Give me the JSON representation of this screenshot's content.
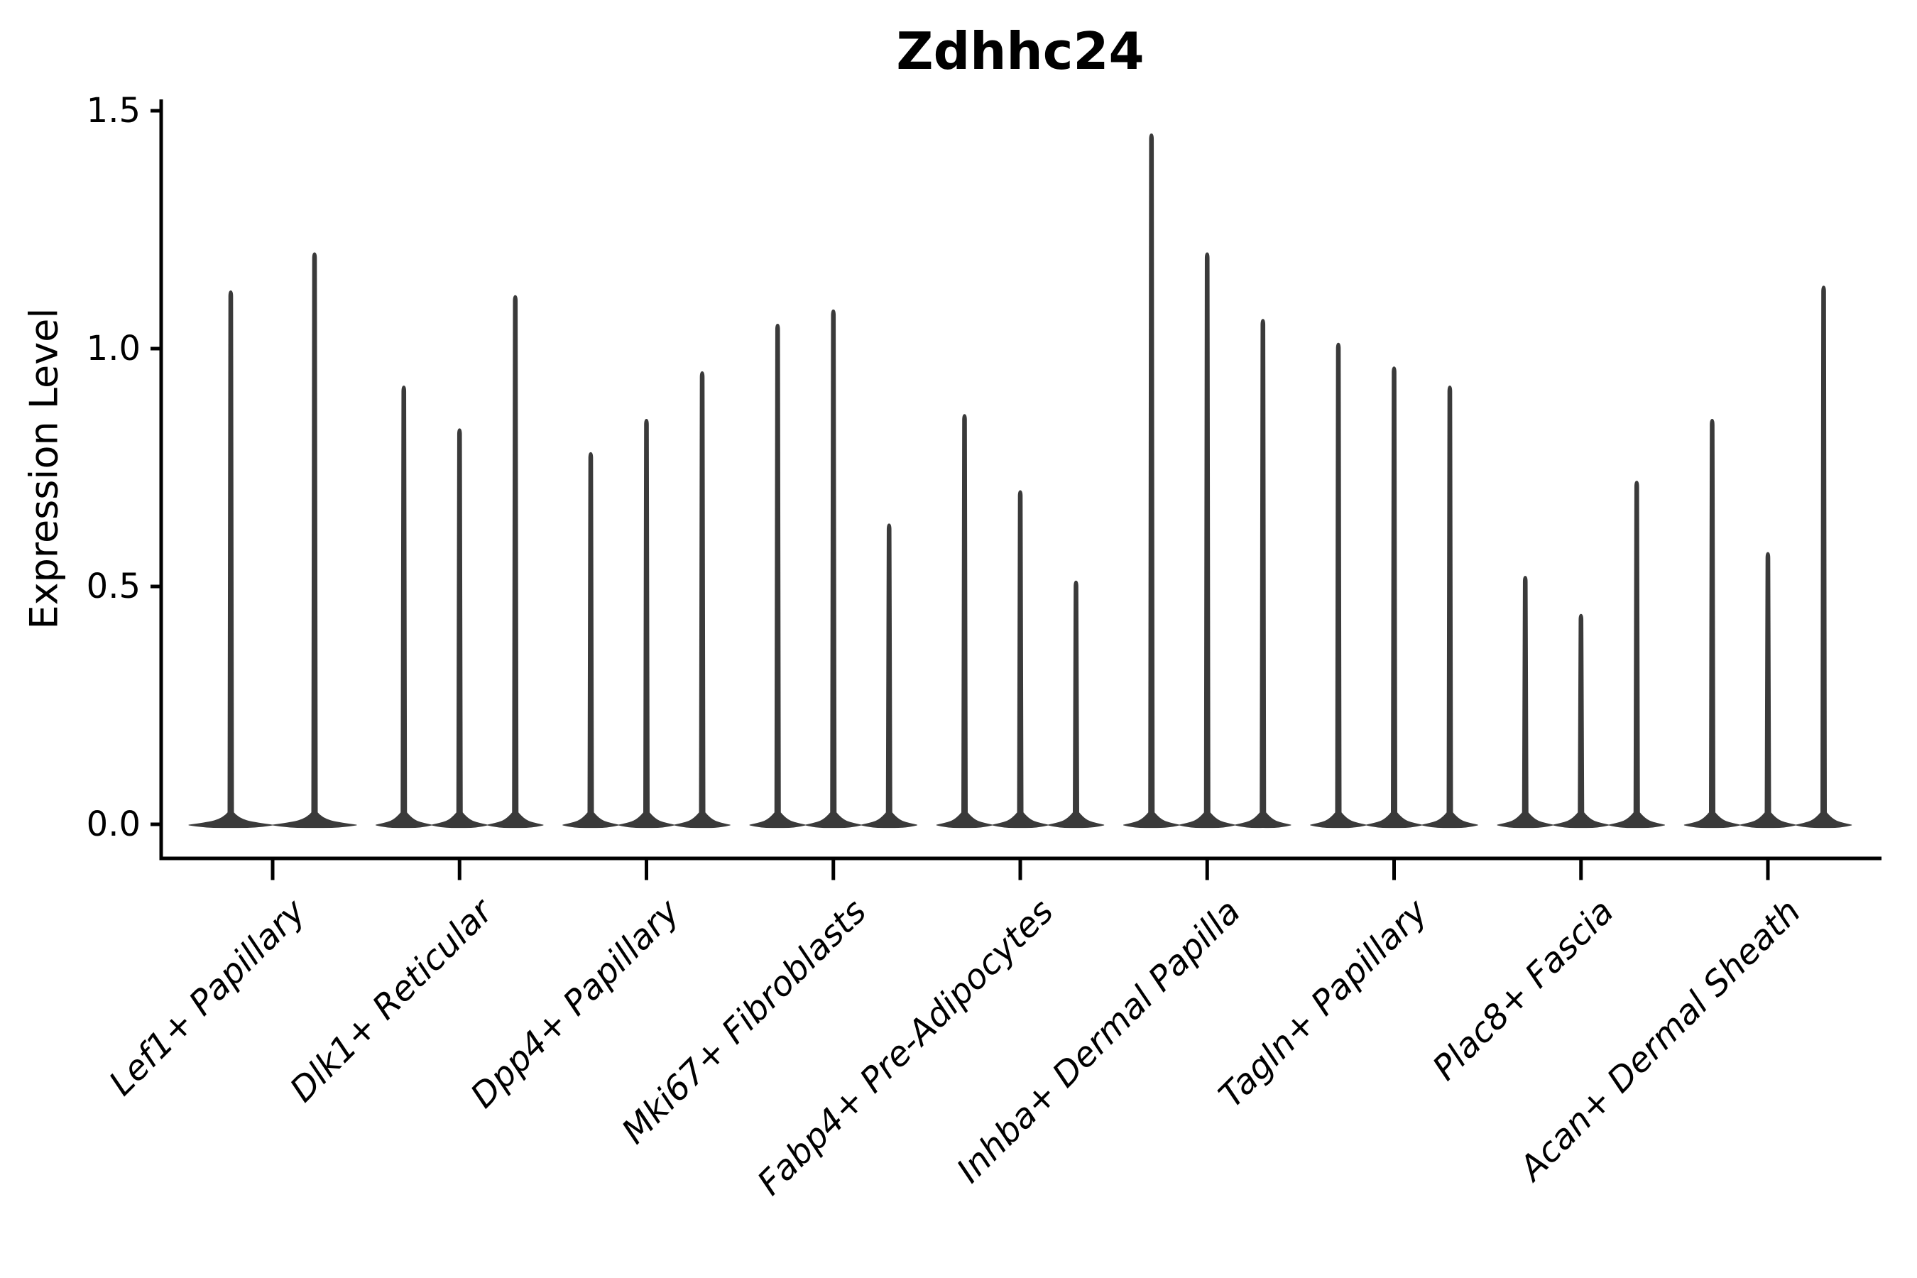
{
  "figure": {
    "background": "#ffffff"
  },
  "chart_data": {
    "type": "violin",
    "title": "Zdhhc24",
    "xlabel": "",
    "ylabel": "Expression Level",
    "grid": false,
    "legend": "none",
    "ylim": [
      -0.07,
      1.52
    ],
    "ytick_labels": [
      "0.0",
      "0.5",
      "1.0",
      "1.5"
    ],
    "ytick_values": [
      0,
      0.5,
      1.0,
      1.5
    ],
    "x_label_rotation_deg": 45,
    "x_labels_italic": true,
    "categories": [
      "Lef1+ Papillary",
      "Dlk1+ Reticular",
      "Dpp4+ Papillary",
      "Mki67+ Fibroblasts",
      "Fabp4+ Pre-Adipocytes",
      "Inhba+ Dermal Papilla",
      "Tagln+ Papillary",
      "Plac8+ Fascia",
      "Acan+ Dermal Sheath"
    ],
    "groups": [
      {
        "label": "Lef1+ Papillary",
        "violin_maxima": [
          1.12,
          1.2
        ]
      },
      {
        "label": "Dlk1+ Reticular",
        "violin_maxima": [
          0.92,
          0.83,
          1.11
        ]
      },
      {
        "label": "Dpp4+ Papillary",
        "violin_maxima": [
          0.78,
          0.85,
          0.95
        ]
      },
      {
        "label": "Mki67+ Fibroblasts",
        "violin_maxima": [
          1.05,
          1.08,
          0.63
        ]
      },
      {
        "label": "Fabp4+ Pre-Adipocytes",
        "violin_maxima": [
          0.86,
          0.7,
          0.51
        ]
      },
      {
        "label": "Inhba+ Dermal Papilla",
        "violin_maxima": [
          1.45,
          1.2,
          1.06
        ]
      },
      {
        "label": "Tagln+ Papillary",
        "violin_maxima": [
          1.01,
          0.96,
          0.92
        ]
      },
      {
        "label": "Plac8+ Fascia",
        "violin_maxima": [
          0.52,
          0.44,
          0.72
        ]
      },
      {
        "label": "Acan+ Dermal Sheath",
        "violin_maxima": [
          0.85,
          0.57,
          1.13
        ]
      }
    ],
    "colors": {
      "violin_fill": "#3a3a3a",
      "axis": "#000000",
      "text": "#000000"
    }
  }
}
